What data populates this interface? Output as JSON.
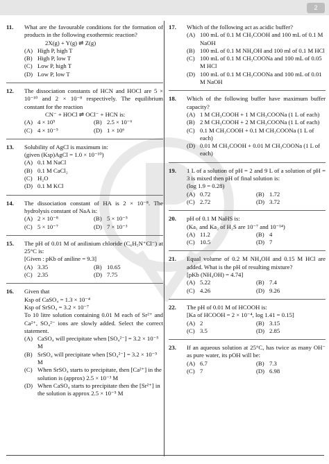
{
  "header": {
    "page_number": "2"
  },
  "left": [
    {
      "number": "11.",
      "lines": [
        "What are the favourable conditions for the formation of products in the following exothermic reaction?",
        "2X(g) + Y(g) ⇌ Z(g)"
      ],
      "options": [
        {
          "label": "(A)",
          "text": "High P, high T"
        },
        {
          "label": "(B)",
          "text": "High P, low T"
        },
        {
          "label": "(C)",
          "text": "Low P, high T"
        },
        {
          "label": "(D)",
          "text": "Low P, low T"
        }
      ]
    },
    {
      "number": "12.",
      "lines": [
        "The dissociation constants of HCN and HOCl are 5 × 10⁻¹⁰ and 2 × 10⁻⁸ respectively. The equilibrium constant for the reaction",
        "CN⁻ + HOCl ⇌ OCl⁻ + HCN is:"
      ],
      "options": [
        {
          "label": "(A)",
          "text": "4 × 10⁵"
        },
        {
          "label": "(B)",
          "text": "2.5 × 10⁻⁶"
        },
        {
          "label": "(C)",
          "text": "4 × 10⁻⁵"
        },
        {
          "label": "(D)",
          "text": "1 × 10⁶"
        }
      ]
    },
    {
      "number": "13.",
      "lines": [
        "Solubility of AgCl is maximum in:",
        "(given (Ksp)AgCl = 1.0 × 10⁻¹⁰)"
      ],
      "options": [
        {
          "label": "(A)",
          "text": "0.1 M NaCl"
        },
        {
          "label": "(B)",
          "text": "0.1 M CaCl₂"
        },
        {
          "label": "(C)",
          "text": "H₂O"
        },
        {
          "label": "(D)",
          "text": "0.1 M KCl"
        }
      ]
    },
    {
      "number": "14.",
      "lines": [
        "The dissociation constant of HA is 2 × 10⁻⁸. The hydrolysis constant of NaA is:"
      ],
      "options": [
        {
          "label": "(A)",
          "text": "2 × 10⁻⁸"
        },
        {
          "label": "(B)",
          "text": "5 × 10⁻⁵"
        },
        {
          "label": "(C)",
          "text": "5 × 10⁻⁷"
        },
        {
          "label": "(D)",
          "text": "7 × 10⁻³"
        }
      ]
    },
    {
      "number": "15.",
      "lines": [
        "The pH of 0.01 M of anilinium chloride (C₆H₅N⁺Cl⁻) at 25°C is:",
        "[Given : pKb of aniline = 9.3]"
      ],
      "options": [
        {
          "label": "(A)",
          "text": "3.35"
        },
        {
          "label": "(B)",
          "text": "10.65"
        },
        {
          "label": "(C)",
          "text": "2.35"
        },
        {
          "label": "(D)",
          "text": "7.75"
        }
      ]
    },
    {
      "number": "16.",
      "lines": [
        "Given that",
        "Ksp of CaSO₄ = 1.3 × 10⁻⁴",
        "Ksp of SrSO₄ = 3.2 × 10⁻⁷",
        "To 10 litre solution containing 0.01 M each of Sr²⁺ and Ca²⁺, SO₄²⁻ ions are slowly added. Select the correct statement."
      ],
      "options": [
        {
          "label": "(A)",
          "text": "CaSO₄ will precipitate when [SO₄²⁻] = 3.2 × 10⁻⁵ M"
        },
        {
          "label": "(B)",
          "text": "SrSO₄ will precipitate when [SO₄²⁻] = 3.2 × 10⁻⁵ M"
        },
        {
          "label": "(C)",
          "text": "When SrSO₄ starts to precipitate, then [Ca²⁺] in the solution is (approx) 2.5 × 10⁻³ M"
        },
        {
          "label": "(D)",
          "text": "When CaSO₄ starts to precipitate then the [Sr²⁺] in the solution is approx 2.5 × 10⁻⁵ M"
        }
      ]
    }
  ],
  "right": [
    {
      "number": "17.",
      "lines": [
        "Which of the following act as acidic buffer?"
      ],
      "options": [
        {
          "label": "(A)",
          "text": "100 mL of 0.1 M CH₃COOH and 100 mL of 0.1 M NaOH"
        },
        {
          "label": "(B)",
          "text": "100 mL of 0.1 M NH₄OH and 100 ml of 0.1 M HCl"
        },
        {
          "label": "(C)",
          "text": "100 mL of 0.1 M CH₃COONa and 100 mL of 0.05 M HCl"
        },
        {
          "label": "(D)",
          "text": "100 mL of 0.1 M CH₃COONa and 100 mL of 0.01 M NaOH"
        }
      ]
    },
    {
      "number": "18.",
      "lines": [
        "Which of the following buffer have maximum buffer capacity?"
      ],
      "options": [
        {
          "label": "(A)",
          "text": "1 M CH₃COOH + 1 M CH₃COONa (1 L of each)"
        },
        {
          "label": "(B)",
          "text": "2 M CH₃COOH + 2 M CH₃COONa (1 L of each)"
        },
        {
          "label": "(C)",
          "text": "0.1 M CH₃COOH + 0.1 M CH₃COONa (1 L of each)"
        },
        {
          "label": "(D)",
          "text": "0.01 M CH₃COOH + 0.01 M CH₃COONa (1 L of each)"
        }
      ]
    },
    {
      "number": "19.",
      "lines": [
        "1 L of a solution of pH = 2 and 9 L of a solution of pH = 3 is mixed then pH of final solution is:",
        "(log 1.9 = 0.28)"
      ],
      "options": [
        {
          "label": "(A)",
          "text": "0.72"
        },
        {
          "label": "(B)",
          "text": "1.72"
        },
        {
          "label": "(C)",
          "text": "2.72"
        },
        {
          "label": "(D)",
          "text": "3.72"
        }
      ]
    },
    {
      "number": "20.",
      "lines": [
        "pH of 0.1 M NaHS is:",
        "(Ka₁ and Ka₂ of H₂S are 10⁻⁷ and 10⁻¹⁴)"
      ],
      "options": [
        {
          "label": "(A)",
          "text": "11.2"
        },
        {
          "label": "(B)",
          "text": "4"
        },
        {
          "label": "(C)",
          "text": "10.5"
        },
        {
          "label": "(D)",
          "text": "7"
        }
      ]
    },
    {
      "number": "21.",
      "lines": [
        "Equal volume of 0.2 M NH₄OH and 0.15 M HCl are added. What is the pH of resulting mixture?",
        "[pKb (NH₄OH) = 4.74]"
      ],
      "options": [
        {
          "label": "(A)",
          "text": "5.22"
        },
        {
          "label": "(B)",
          "text": "7.4"
        },
        {
          "label": "(C)",
          "text": "4.26"
        },
        {
          "label": "(D)",
          "text": "9.26"
        }
      ]
    },
    {
      "number": "22.",
      "lines": [
        "The pH of 0.01 M of HCOOH is:",
        "[Ka of HCOOH = 2 × 10⁻⁴, log 1.41 = 0.15]"
      ],
      "options": [
        {
          "label": "(A)",
          "text": "2"
        },
        {
          "label": "(B)",
          "text": "3.15"
        },
        {
          "label": "(C)",
          "text": "3.5"
        },
        {
          "label": "(D)",
          "text": "2.85"
        }
      ]
    },
    {
      "number": "23.",
      "lines": [
        "If an aqueous solution at 25°C, has twice as many OH⁻ as pure water, its pOH will be:"
      ],
      "options": [
        {
          "label": "(A)",
          "text": "6.7"
        },
        {
          "label": "(B)",
          "text": "7.3"
        },
        {
          "label": "(C)",
          "text": "7"
        },
        {
          "label": "(D)",
          "text": "6.98"
        }
      ]
    }
  ]
}
